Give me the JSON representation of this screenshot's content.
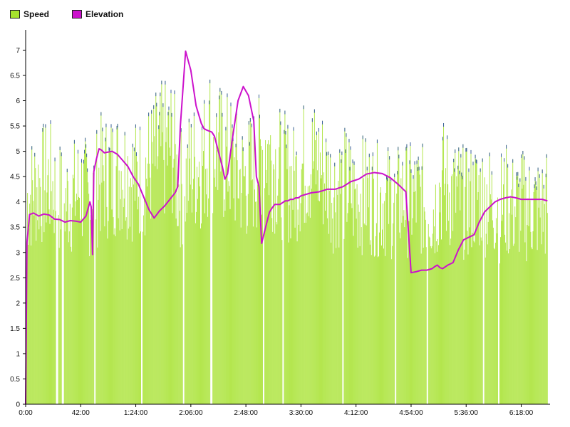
{
  "chart_data": {
    "type": "bar",
    "legend_position": "top-left",
    "grid": false,
    "series": [
      {
        "name": "Speed",
        "kind": "bar",
        "color": "#a6e22e",
        "cap_color": "#3b5f9e"
      },
      {
        "name": "Elevation",
        "kind": "line",
        "color": "#cc11cc"
      }
    ],
    "x_ticks": [
      "0:00",
      "42:00",
      "1:24:00",
      "2:06:00",
      "2:48:00",
      "3:30:00",
      "4:12:00",
      "4:54:00",
      "5:36:00",
      "6:18:00"
    ],
    "x_tick_minutes": [
      0,
      42,
      84,
      126,
      168,
      210,
      252,
      294,
      336,
      378
    ],
    "y_ticks": [
      "0",
      "0.5",
      "1",
      "1.5",
      "2",
      "2.5",
      "3",
      "3.5",
      "4",
      "4.5",
      "5",
      "5.5",
      "6",
      "6.5",
      "7"
    ],
    "ylim": [
      0,
      7.4
    ],
    "xlim_minutes": [
      0,
      400
    ],
    "speed_envelope": {
      "minutes": [
        0,
        1,
        3,
        6,
        12,
        18,
        24,
        30,
        36,
        42,
        48,
        53,
        56,
        60,
        66,
        72,
        78,
        84,
        90,
        96,
        102,
        108,
        112,
        116,
        120,
        126,
        130,
        134,
        138,
        140,
        144,
        150,
        156,
        162,
        168,
        174,
        178,
        182,
        186,
        192,
        198,
        204,
        210,
        216,
        222,
        228,
        234,
        240,
        246,
        252,
        258,
        264,
        270,
        276,
        282,
        288,
        294,
        300,
        306,
        312,
        318,
        324,
        330,
        336,
        342,
        348,
        354,
        360,
        366,
        372,
        378,
        384,
        390,
        396,
        398
      ],
      "values": [
        0,
        5.2,
        5.3,
        5.5,
        5.6,
        5.7,
        5.3,
        5.2,
        5.3,
        5.5,
        5.2,
        5.4,
        5.8,
        5.8,
        5.9,
        6.0,
        5.9,
        5.7,
        5.9,
        6.1,
        6.4,
        6.5,
        6.6,
        5.5,
        5.6,
        6.0,
        6.1,
        6.2,
        6.4,
        6.9,
        6.6,
        6.3,
        6.2,
        5.8,
        5.7,
        6.0,
        6.2,
        6.9,
        6.3,
        6.0,
        5.8,
        5.6,
        6.0,
        6.2,
        6.1,
        5.9,
        5.4,
        5.6,
        5.5,
        5.2,
        5.4,
        5.3,
        5.2,
        5.2,
        5.1,
        5.3,
        5.2,
        5.3,
        5.0,
        5.0,
        5.7,
        5.4,
        5.3,
        5.1,
        5.3,
        5.3,
        5.2,
        5.0,
        5.2,
        5.0,
        5.1,
        5.0,
        5.0,
        5.0,
        5.2
      ]
    },
    "speed_gaps_minutes": [
      [
        0,
        0.5
      ],
      [
        23,
        24.5
      ],
      [
        27.5,
        29
      ],
      [
        52,
        53
      ],
      [
        88,
        89
      ],
      [
        119.5,
        120.5
      ],
      [
        140.5,
        142
      ],
      [
        181,
        182
      ],
      [
        195.5,
        196.5
      ],
      [
        241.5,
        242.5
      ],
      [
        281.5,
        282.5
      ],
      [
        305.5,
        306.5
      ],
      [
        348.5,
        349.5
      ],
      [
        360,
        361
      ]
    ],
    "elevation": {
      "minutes": [
        0,
        1,
        3,
        6,
        10,
        14,
        18,
        22,
        26,
        30,
        34,
        38,
        42,
        46,
        49,
        50,
        51,
        52,
        54,
        56,
        58,
        60,
        62,
        66,
        70,
        74,
        78,
        82,
        86,
        90,
        94,
        98,
        102,
        106,
        110,
        114,
        116,
        118,
        122,
        126,
        130,
        134,
        136,
        138,
        140,
        142,
        144,
        146,
        148,
        150,
        152,
        154,
        158,
        162,
        166,
        170,
        174,
        176,
        178,
        180,
        184,
        186,
        188,
        190,
        194,
        198,
        200,
        202,
        204,
        206,
        208,
        210,
        214,
        218,
        224,
        230,
        236,
        242,
        248,
        254,
        260,
        266,
        272,
        278,
        284,
        290,
        294,
        298,
        302,
        306,
        310,
        312,
        314,
        316,
        318,
        322,
        326,
        330,
        334,
        338,
        342,
        346,
        350,
        354,
        358,
        362,
        366,
        370,
        374,
        378,
        382,
        386,
        390,
        394,
        398
      ],
      "values": [
        0,
        3.2,
        3.75,
        3.78,
        3.72,
        3.76,
        3.74,
        3.66,
        3.65,
        3.6,
        3.63,
        3.62,
        3.6,
        3.72,
        4.0,
        3.9,
        2.96,
        4.6,
        4.85,
        5.05,
        5.02,
        4.97,
        4.98,
        5.0,
        4.94,
        4.82,
        4.7,
        4.5,
        4.35,
        4.1,
        3.85,
        3.68,
        3.82,
        3.92,
        4.05,
        4.18,
        4.3,
        5.5,
        6.98,
        6.6,
        5.9,
        5.55,
        5.45,
        5.42,
        5.4,
        5.38,
        5.3,
        5.1,
        4.9,
        4.7,
        4.45,
        4.55,
        5.3,
        6.0,
        6.28,
        6.1,
        5.6,
        4.5,
        4.3,
        3.18,
        3.6,
        3.8,
        3.88,
        3.95,
        3.95,
        4.02,
        4.02,
        4.05,
        4.05,
        4.08,
        4.08,
        4.12,
        4.15,
        4.18,
        4.2,
        4.25,
        4.25,
        4.3,
        4.4,
        4.45,
        4.55,
        4.58,
        4.56,
        4.48,
        4.35,
        4.2,
        2.6,
        2.62,
        2.65,
        2.65,
        2.68,
        2.72,
        2.75,
        2.7,
        2.68,
        2.75,
        2.8,
        3.05,
        3.25,
        3.3,
        3.35,
        3.6,
        3.8,
        3.9,
        4.0,
        4.05,
        4.08,
        4.1,
        4.08,
        4.05,
        4.05,
        4.05,
        4.05,
        4.05,
        4.02
      ]
    }
  }
}
